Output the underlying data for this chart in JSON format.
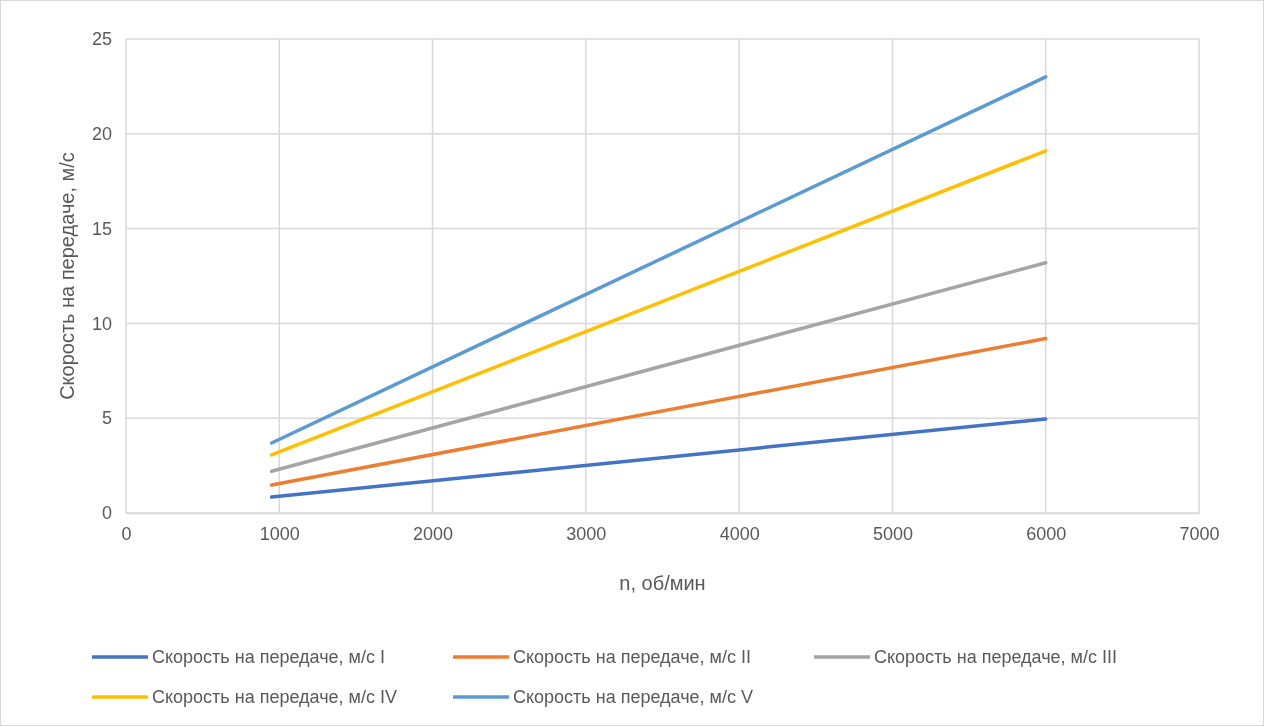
{
  "chart_data": {
    "type": "line",
    "xlabel": "n, об/мин",
    "ylabel": "Скорость на передаче, м/с",
    "x": [
      950,
      6000
    ],
    "series": [
      {
        "name": "Скорость на передаче, м/с I",
        "color": "#4472c4",
        "values": [
          0.84,
          4.96
        ]
      },
      {
        "name": "Скорость на передаче, м/с II",
        "color": "#ed7d31",
        "values": [
          1.48,
          9.2
        ]
      },
      {
        "name": "Скорость на передаче, м/с III",
        "color": "#a5a5a5",
        "values": [
          2.2,
          13.2
        ]
      },
      {
        "name": "Скорость на передаче, м/с IV",
        "color": "#ffc000",
        "values": [
          3.06,
          19.1
        ]
      },
      {
        "name": "Скорость на передаче, м/с V",
        "color": "#5b9bd5",
        "values": [
          3.69,
          23.0
        ]
      }
    ],
    "xlim": [
      0,
      7000
    ],
    "xticks": [
      0,
      1000,
      2000,
      3000,
      4000,
      5000,
      6000,
      7000
    ],
    "ylim": [
      0,
      25
    ],
    "yticks": [
      0,
      5,
      10,
      15,
      20,
      25
    ],
    "grid": true,
    "legend": "bottom",
    "marker": "none",
    "line_style": "solid"
  }
}
